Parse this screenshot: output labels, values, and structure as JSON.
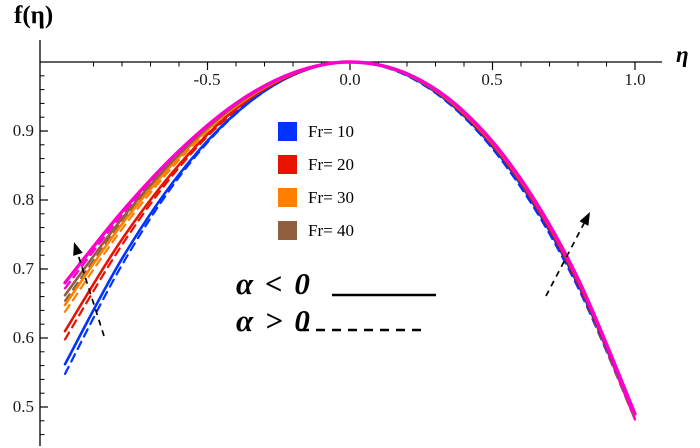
{
  "figure": {
    "y_axis_title": "f(η)",
    "x_axis_title": "η",
    "background_color": "#ffffff",
    "axis_color": "#000000"
  },
  "legend": {
    "items": [
      {
        "label": "Fr= 10",
        "color": "#0033ff"
      },
      {
        "label": "Fr= 20",
        "color": "#e81200"
      },
      {
        "label": "Fr= 30",
        "color": "#ff8000"
      },
      {
        "label": "Fr= 40",
        "color": "#8f5f3f"
      }
    ]
  },
  "annotations": {
    "alpha_negative": "α < 0",
    "alpha_negative_style": "solid",
    "alpha_positive": "α > 0",
    "alpha_positive_style": "dashed",
    "arrow_color": "#000000"
  },
  "chart_data": {
    "type": "line",
    "title": "",
    "xlabel": "η",
    "ylabel": "f(η)",
    "xlim": [
      -1.05,
      1.09
    ],
    "ylim": [
      0.44,
      1.0
    ],
    "grid": false,
    "legend_position": "upper-middle-left",
    "x_ticks": [
      -0.5,
      0.0,
      0.5,
      1.0
    ],
    "x_tick_labels": [
      "-0.5",
      "0.0",
      "0.5",
      "1.0"
    ],
    "x_minor_step": 0.1,
    "y_ticks": [
      0.5,
      0.6,
      0.7,
      0.8,
      0.9
    ],
    "y_tick_labels": [
      "0.5",
      "0.6",
      "0.7",
      "0.8",
      "0.9"
    ],
    "y_minor_step": 0.02,
    "x": [
      -1.0,
      -0.8,
      -0.6,
      -0.4,
      -0.2,
      0.0,
      0.2,
      0.4,
      0.6,
      0.8,
      1.0
    ],
    "series": [
      {
        "name": "Fr=10, α>0",
        "color": "#0033ff",
        "style": "dashed",
        "width": 2.2,
        "values": [
          0.548,
          0.706,
          0.833,
          0.925,
          0.981,
          1.0,
          0.98,
          0.92,
          0.818,
          0.673,
          0.482
        ]
      },
      {
        "name": "Fr=20, α>0",
        "color": "#e81200",
        "style": "dashed",
        "width": 2.2,
        "values": [
          0.598,
          0.735,
          0.847,
          0.93,
          0.982,
          1.0,
          0.981,
          0.923,
          0.822,
          0.676,
          0.482
        ]
      },
      {
        "name": "Fr=30, α>0",
        "color": "#ff8000",
        "style": "dashed",
        "width": 2.2,
        "values": [
          0.638,
          0.758,
          0.858,
          0.935,
          0.983,
          1.0,
          0.982,
          0.925,
          0.825,
          0.678,
          0.482
        ]
      },
      {
        "name": "Fr=40, α>0",
        "color": "#8f5f3f",
        "style": "dashed",
        "width": 2.2,
        "values": [
          0.654,
          0.768,
          0.863,
          0.936,
          0.983,
          1.0,
          0.982,
          0.925,
          0.826,
          0.679,
          0.482
        ]
      },
      {
        "name": "magenta (unlabeled), α>0",
        "color": "#ff00cc",
        "style": "dashed",
        "width": 2.4,
        "values": [
          0.672,
          0.778,
          0.868,
          0.938,
          0.984,
          1.0,
          0.983,
          0.926,
          0.827,
          0.681,
          0.482
        ]
      },
      {
        "name": "Fr=10, α<0",
        "color": "#0033ff",
        "style": "solid",
        "width": 2.6,
        "values": [
          0.562,
          0.715,
          0.837,
          0.926,
          0.981,
          1.0,
          0.981,
          0.922,
          0.822,
          0.678,
          0.49
        ]
      },
      {
        "name": "Fr=20, α<0",
        "color": "#e81200",
        "style": "solid",
        "width": 2.6,
        "values": [
          0.61,
          0.743,
          0.851,
          0.932,
          0.982,
          1.0,
          0.982,
          0.924,
          0.825,
          0.681,
          0.49
        ]
      },
      {
        "name": "Fr=30, α<0",
        "color": "#ff8000",
        "style": "solid",
        "width": 2.6,
        "values": [
          0.648,
          0.765,
          0.862,
          0.936,
          0.983,
          1.0,
          0.982,
          0.926,
          0.828,
          0.684,
          0.49
        ]
      },
      {
        "name": "Fr=40, α<0",
        "color": "#8f5f3f",
        "style": "solid",
        "width": 2.6,
        "values": [
          0.662,
          0.773,
          0.866,
          0.938,
          0.984,
          1.0,
          0.982,
          0.927,
          0.829,
          0.685,
          0.49
        ]
      },
      {
        "name": "magenta (unlabeled), α<0",
        "color": "#ff00cc",
        "style": "solid",
        "width": 3.4,
        "values": [
          0.68,
          0.783,
          0.871,
          0.94,
          0.984,
          1.0,
          0.983,
          0.928,
          0.83,
          0.686,
          0.49
        ]
      }
    ]
  }
}
